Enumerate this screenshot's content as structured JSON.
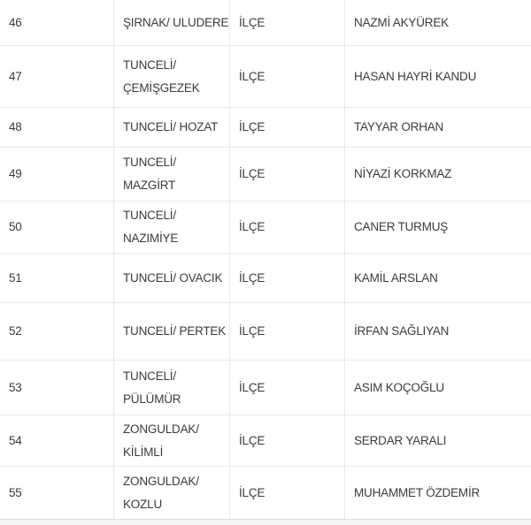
{
  "table": {
    "rows": [
      {
        "no": "46",
        "location": "ŞIRNAK/ ULUDERE",
        "type": "İLÇE",
        "name": "NAZMİ AKYÜREK"
      },
      {
        "no": "47",
        "location": "TUNCELİ/\nÇEMİŞGEZEK",
        "type": "İLÇE",
        "name": "HASAN HAYRİ KANDU"
      },
      {
        "no": "48",
        "location": "TUNCELİ/ HOZAT",
        "type": "İLÇE",
        "name": "TAYYAR ORHAN"
      },
      {
        "no": "49",
        "location": "TUNCELİ/\nMAZGİRT",
        "type": "İLÇE",
        "name": "NİYAZİ KORKMAZ"
      },
      {
        "no": "50",
        "location": "TUNCELİ/\nNAZIMİYE",
        "type": "İLÇE",
        "name": "CANER TURMUŞ"
      },
      {
        "no": "51",
        "location": "TUNCELİ/ OVACIK",
        "type": "İLÇE",
        "name": "KAMİL ARSLAN"
      },
      {
        "no": "52",
        "location": "TUNCELİ/ PERTEK",
        "type": "İLÇE",
        "name": "İRFAN SAĞLIYAN"
      },
      {
        "no": "53",
        "location": "TUNCELİ/\nPÜLÜMÜR",
        "type": "İLÇE",
        "name": "ASIM KOÇOĞLU"
      },
      {
        "no": "54",
        "location": "ZONGULDAK/\nKİLİMLİ",
        "type": "İLÇE",
        "name": "SERDAR YARALI"
      },
      {
        "no": "55",
        "location": "ZONGULDAK/\nKOZLU",
        "type": "İLÇE",
        "name": "MUHAMMET ÖZDEMİR"
      }
    ],
    "colors": {
      "row_background": "#ffffff",
      "border": "#e9e9e9",
      "bottom_border": "#dfddd9",
      "partial_next_row_background": "#f5f4f2",
      "text": "#3b3b3b"
    }
  }
}
